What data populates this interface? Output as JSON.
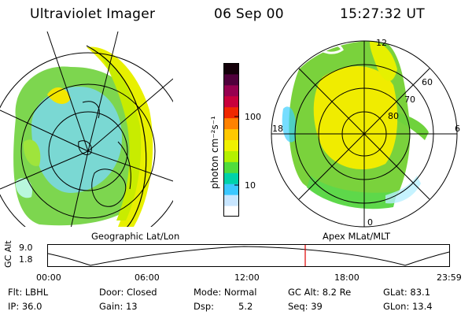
{
  "header": {
    "instrument": "Ultraviolet Imager",
    "date": "06 Sep 00",
    "time": "15:27:32 UT"
  },
  "left_panel": {
    "caption": "Geographic Lat/Lon"
  },
  "right_panel": {
    "caption": "Apex MLat/MLT",
    "mlt_labels": [
      "12",
      "18",
      "6",
      "0"
    ],
    "lat_labels": [
      "60",
      "70",
      "80"
    ]
  },
  "colorbar": {
    "unit_label": "photon cm⁻²s⁻¹",
    "tick_100": "100",
    "tick_10": "10",
    "colors": [
      "#ffffff",
      "#c8e6ff",
      "#3cc8ff",
      "#00d2aa",
      "#50dc3c",
      "#b4f000",
      "#f0f000",
      "#ffc800",
      "#ff8200",
      "#f02800",
      "#c8003c",
      "#960050",
      "#50003c",
      "#14000a"
    ]
  },
  "altitude_plot": {
    "axis_title": "GC Alt",
    "y_top": "9.0",
    "y_bottom": "1.8",
    "x_ticks": [
      "00:00",
      "06:00",
      "12:00",
      "18:00",
      "23:59"
    ],
    "marker_color": "#e00000"
  },
  "status": {
    "filter": "Flt: LBHL",
    "door": "Door: Closed",
    "mode": "Mode: Normal",
    "gc_alt": "GC Alt: 8.2 Re",
    "glat": "GLat: 83.1",
    "ip": "IP: 36.0",
    "gain": "Gain: 13",
    "dsp_label": "Dsp:",
    "dsp_value": "5.2",
    "seq": "Seq: 39",
    "glon": "GLon: 13.4"
  }
}
